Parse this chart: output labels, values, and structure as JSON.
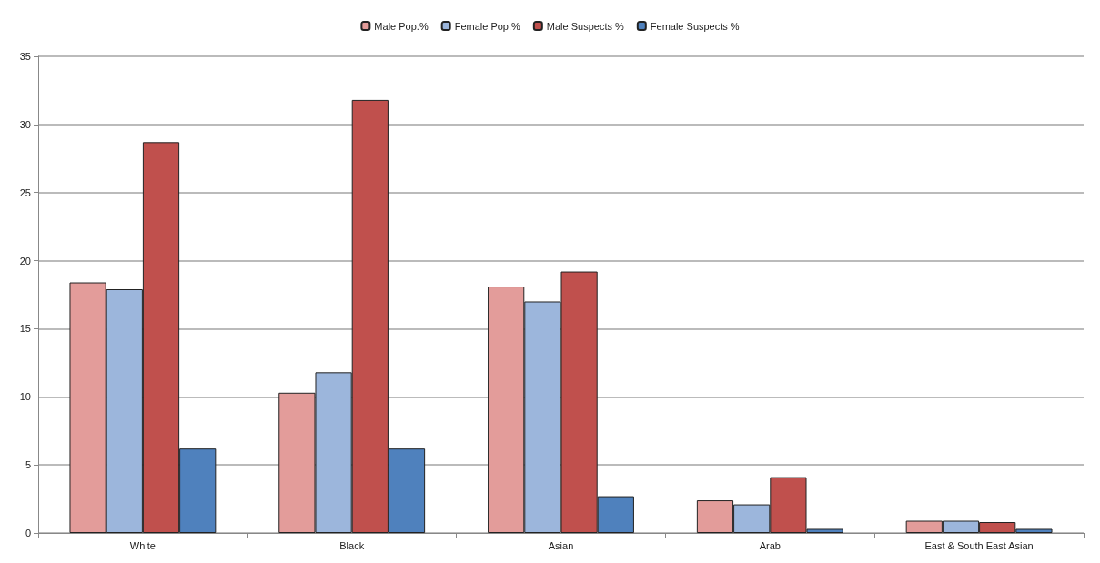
{
  "chart_data": {
    "type": "bar",
    "categories": [
      "White",
      "Black",
      "Asian",
      "Arab",
      "East & South East Asian"
    ],
    "series": [
      {
        "name": "Male Pop.%",
        "color": "#e39c9a",
        "values": [
          18.4,
          10.3,
          18.1,
          2.4,
          0.9
        ]
      },
      {
        "name": "Female Pop.%",
        "color": "#9cb6dc",
        "values": [
          17.9,
          11.8,
          17.0,
          2.1,
          0.9
        ]
      },
      {
        "name": "Male Suspects %",
        "color": "#c0504d",
        "values": [
          28.7,
          31.8,
          19.2,
          4.1,
          0.8
        ]
      },
      {
        "name": "Female Suspects %",
        "color": "#4f81bd",
        "values": [
          6.2,
          6.2,
          2.7,
          0.3,
          0.3
        ]
      }
    ],
    "ylim": [
      0,
      35
    ],
    "yticks": [
      0,
      5,
      10,
      15,
      20,
      25,
      30,
      35
    ],
    "grid": "y",
    "legend": "top"
  }
}
